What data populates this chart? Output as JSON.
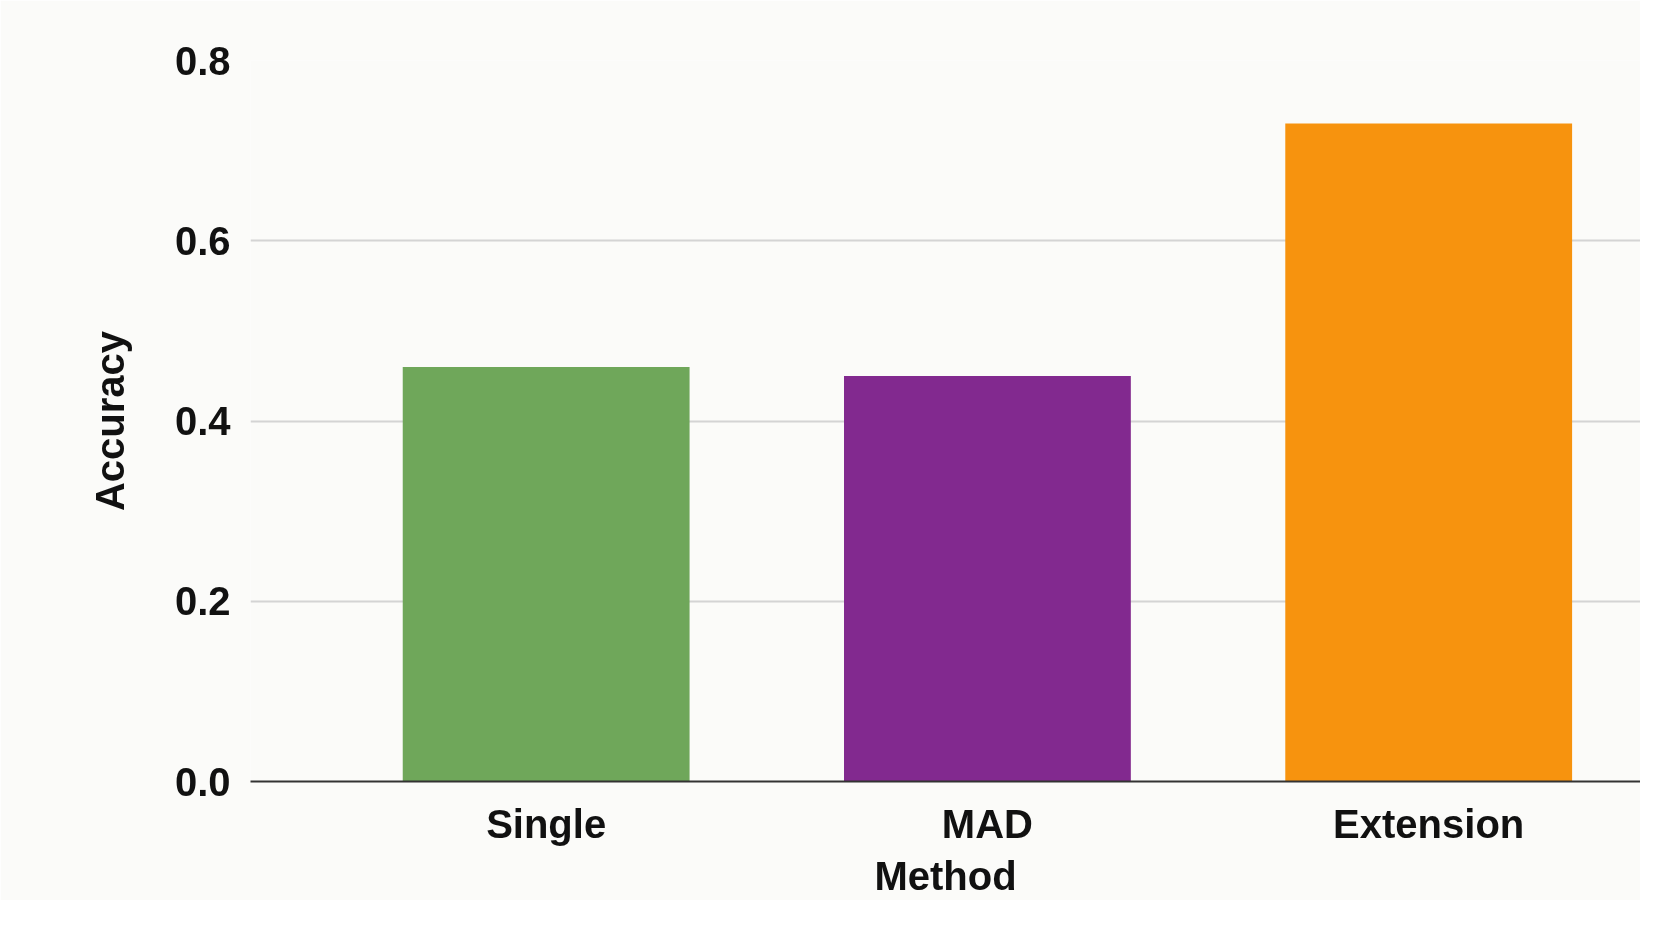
{
  "chart_data": {
    "type": "bar",
    "xlabel": "Method",
    "ylabel": "Accuracy",
    "categories": [
      "Single",
      "MAD",
      "Extension"
    ],
    "values": [
      0.46,
      0.45,
      0.73
    ],
    "colors": [
      "#6fa75a",
      "#82298f",
      "#f7930e"
    ],
    "ylim": [
      0,
      0.8
    ],
    "yticks": [
      {
        "value": 0,
        "label": "0.0"
      },
      0.2,
      0.4,
      0.6,
      0.8
    ],
    "grid": "y"
  }
}
